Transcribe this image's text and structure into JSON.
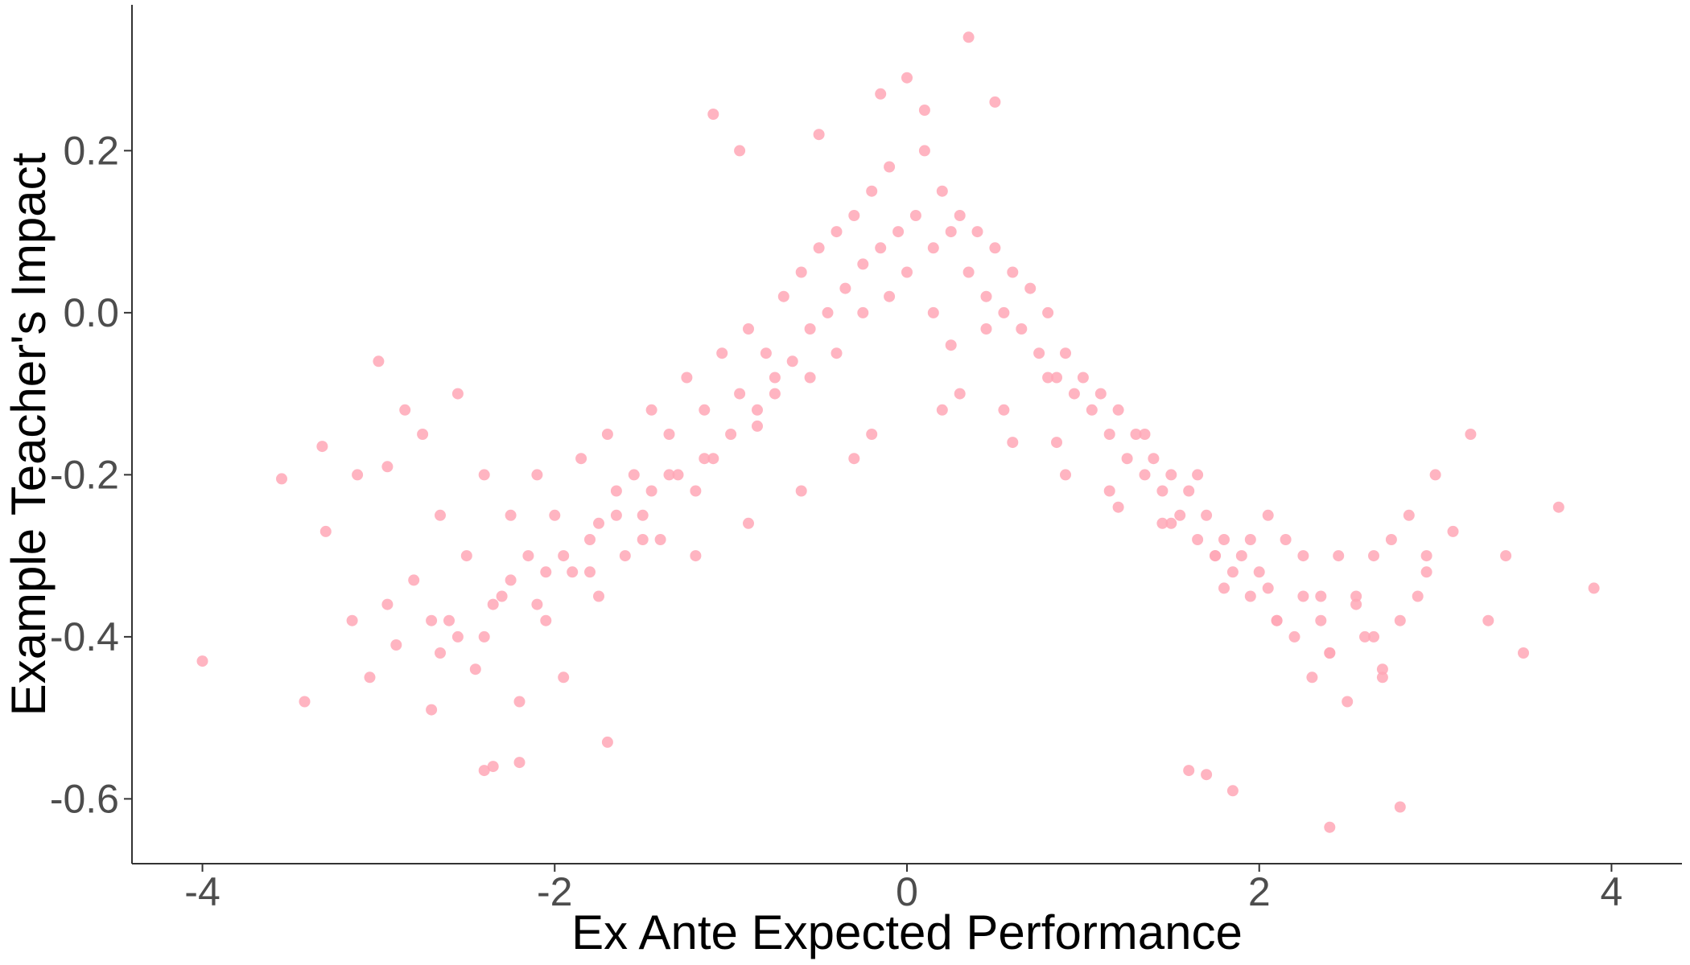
{
  "chart_data": {
    "type": "scatter",
    "title": "",
    "xlabel": "Ex Ante Expected Performance",
    "ylabel": "Example Teacher's Impact",
    "xlim": [
      -4.4,
      4.4
    ],
    "ylim": [
      -0.68,
      0.38
    ],
    "x_ticks": [
      -4,
      -2,
      0,
      2,
      4
    ],
    "x_tick_labels": [
      "-4",
      "-2",
      "0",
      "2",
      "4"
    ],
    "y_ticks": [
      -0.6,
      -0.4,
      -0.2,
      0.0,
      0.2
    ],
    "y_tick_labels": [
      "-0.6",
      "-0.4",
      "-0.2",
      "0.0",
      "0.2"
    ],
    "grid": false,
    "legend": "none",
    "point_color": "#ffa7b6",
    "point_alpha": 0.85,
    "x": [
      -4.0,
      -3.55,
      -3.42,
      -3.32,
      -3.3,
      -3.15,
      -3.12,
      -3.05,
      -3.0,
      -2.95,
      -2.9,
      -2.85,
      -2.8,
      -2.75,
      -2.7,
      -2.65,
      -2.6,
      -2.55,
      -2.5,
      -2.45,
      -2.4,
      -2.35,
      -2.3,
      -2.25,
      -2.2,
      -2.15,
      -2.1,
      -2.05,
      -2.0,
      -1.95,
      -1.9,
      -1.85,
      -1.8,
      -1.75,
      -1.7,
      -1.65,
      -1.6,
      -1.55,
      -1.5,
      -1.45,
      -1.4,
      -1.35,
      -1.3,
      -1.25,
      -1.2,
      -1.15,
      -1.1,
      -1.05,
      -1.0,
      -0.95,
      -0.9,
      -0.85,
      -0.8,
      -0.75,
      -0.7,
      -0.65,
      -0.6,
      -0.55,
      -0.5,
      -0.45,
      -0.4,
      -0.35,
      -0.3,
      -0.25,
      -0.2,
      -0.15,
      -0.1,
      -0.05,
      0.0,
      0.05,
      0.1,
      0.15,
      0.2,
      0.25,
      0.3,
      0.35,
      0.4,
      0.45,
      0.5,
      0.55,
      0.6,
      0.65,
      0.7,
      0.75,
      0.8,
      0.85,
      0.9,
      0.95,
      1.0,
      1.05,
      1.1,
      1.15,
      1.2,
      1.25,
      1.3,
      1.35,
      1.4,
      1.45,
      1.5,
      1.55,
      1.6,
      1.65,
      1.7,
      1.75,
      1.8,
      1.85,
      1.9,
      1.95,
      2.0,
      2.05,
      2.1,
      2.15,
      2.2,
      2.25,
      2.3,
      2.35,
      2.4,
      2.45,
      2.5,
      2.55,
      2.6,
      2.65,
      2.7,
      2.75,
      2.8,
      2.85,
      2.9,
      2.95,
      3.0,
      3.1,
      3.2,
      3.3,
      3.4,
      3.5,
      3.7,
      3.9,
      -1.1,
      -0.95,
      -0.15,
      0.1,
      0.35,
      0.0,
      -0.5,
      0.5,
      2.8,
      2.4,
      1.85,
      -2.4,
      -2.2,
      -1.7,
      1.6,
      1.7,
      -0.2,
      0.2,
      -0.3,
      0.3,
      -0.6,
      0.6,
      -0.9,
      0.9,
      -1.2,
      1.2,
      -1.5,
      1.5,
      -1.8,
      1.8,
      -2.1,
      2.1,
      -2.4,
      2.4,
      -2.7,
      2.7,
      -0.4,
      0.45,
      -0.75,
      0.8,
      -1.35,
      1.35,
      -1.65,
      1.65,
      -1.95,
      1.95,
      -2.25,
      2.25,
      -2.55,
      2.55,
      -0.1,
      0.15,
      -0.25,
      0.25,
      -0.55,
      0.55,
      -0.85,
      0.85,
      -1.15,
      1.15,
      -1.45,
      1.45,
      -1.75,
      1.75,
      -2.05,
      2.05,
      -2.35,
      2.35,
      -2.65,
      2.65,
      -2.95,
      2.95
    ],
    "y": [
      -0.43,
      -0.205,
      -0.48,
      -0.165,
      -0.27,
      -0.38,
      -0.2,
      -0.45,
      -0.06,
      -0.19,
      -0.41,
      -0.12,
      -0.33,
      -0.15,
      -0.49,
      -0.25,
      -0.38,
      -0.1,
      -0.3,
      -0.44,
      -0.2,
      -0.56,
      -0.35,
      -0.25,
      -0.48,
      -0.3,
      -0.2,
      -0.38,
      -0.25,
      -0.45,
      -0.32,
      -0.18,
      -0.28,
      -0.35,
      -0.15,
      -0.22,
      -0.3,
      -0.2,
      -0.25,
      -0.12,
      -0.28,
      -0.15,
      -0.2,
      -0.08,
      -0.22,
      -0.12,
      -0.18,
      -0.05,
      -0.15,
      -0.1,
      -0.02,
      -0.12,
      -0.05,
      -0.08,
      0.02,
      -0.06,
      0.05,
      -0.02,
      0.08,
      0.0,
      0.1,
      0.03,
      0.12,
      0.06,
      0.15,
      0.08,
      0.18,
      0.1,
      0.05,
      0.12,
      0.2,
      0.08,
      0.15,
      0.1,
      0.12,
      0.05,
      0.1,
      0.02,
      0.08,
      0.0,
      0.05,
      -0.02,
      0.03,
      -0.05,
      0.0,
      -0.08,
      -0.05,
      -0.1,
      -0.08,
      -0.12,
      -0.1,
      -0.15,
      -0.12,
      -0.18,
      -0.15,
      -0.2,
      -0.18,
      -0.22,
      -0.2,
      -0.25,
      -0.22,
      -0.28,
      -0.25,
      -0.3,
      -0.28,
      -0.32,
      -0.3,
      -0.35,
      -0.32,
      -0.25,
      -0.38,
      -0.28,
      -0.4,
      -0.3,
      -0.45,
      -0.35,
      -0.42,
      -0.3,
      -0.48,
      -0.35,
      -0.4,
      -0.3,
      -0.45,
      -0.28,
      -0.38,
      -0.25,
      -0.35,
      -0.3,
      -0.2,
      -0.27,
      -0.15,
      -0.38,
      -0.3,
      -0.42,
      -0.24,
      -0.34,
      0.245,
      0.2,
      0.27,
      0.25,
      0.34,
      0.29,
      0.22,
      0.26,
      -0.61,
      -0.635,
      -0.59,
      -0.565,
      -0.555,
      -0.53,
      -0.565,
      -0.57,
      -0.15,
      -0.12,
      -0.18,
      -0.1,
      -0.22,
      -0.16,
      -0.26,
      -0.2,
      -0.3,
      -0.24,
      -0.28,
      -0.26,
      -0.32,
      -0.34,
      -0.36,
      -0.38,
      -0.4,
      -0.42,
      -0.38,
      -0.44,
      -0.05,
      -0.02,
      -0.1,
      -0.08,
      -0.2,
      -0.15,
      -0.25,
      -0.2,
      -0.3,
      -0.28,
      -0.33,
      -0.35,
      -0.4,
      -0.36,
      0.02,
      0.0,
      0.0,
      -0.04,
      -0.08,
      -0.12,
      -0.14,
      -0.16,
      -0.18,
      -0.22,
      -0.22,
      -0.26,
      -0.26,
      -0.3,
      -0.32,
      -0.34,
      -0.36,
      -0.38,
      -0.42,
      -0.4,
      -0.36,
      -0.32
    ]
  }
}
